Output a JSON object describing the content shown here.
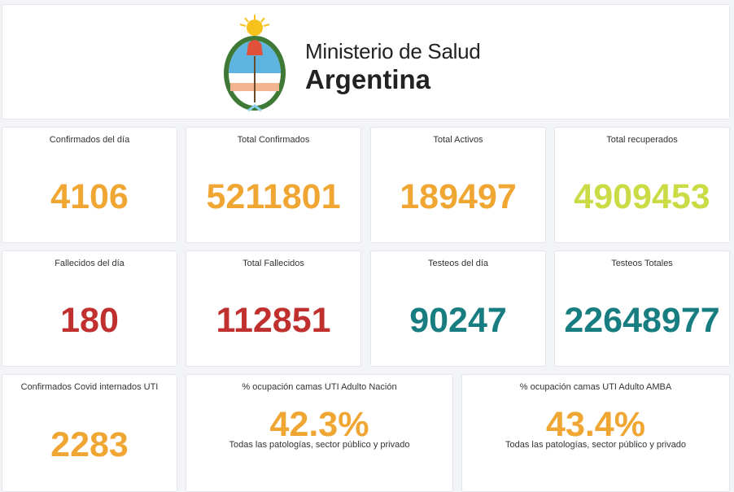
{
  "header": {
    "line1": "Ministerio de Salud",
    "line2": "Argentina"
  },
  "colors": {
    "orange": "#f0a632",
    "green": "#cadb45",
    "red": "#c0302e",
    "teal": "#177d80"
  },
  "cards": [
    {
      "title": "Confirmados del día",
      "value": "4106",
      "color": "#f0a632"
    },
    {
      "title": "Total Confirmados",
      "value": "5211801",
      "color": "#f0a632"
    },
    {
      "title": "Total Activos",
      "value": "189497",
      "color": "#f0a632"
    },
    {
      "title": "Total recuperados",
      "value": "4909453",
      "color": "#cadb45"
    },
    {
      "title": "Fallecidos del día",
      "value": "180",
      "color": "#c0302e"
    },
    {
      "title": "Total Fallecidos",
      "value": "112851",
      "color": "#c0302e"
    },
    {
      "title": "Testeos del día",
      "value": "90247",
      "color": "#177d80"
    },
    {
      "title": "Testeos Totales",
      "value": "22648977",
      "color": "#177d80"
    },
    {
      "title": "Confirmados Covid internados UTI",
      "value": "2283",
      "color": "#f0a632"
    },
    {
      "title": "% ocupación camas UTI Adulto Nación",
      "value": "42.3%",
      "subtitle": "Todas las patologías, sector público y privado",
      "color": "#f0a632"
    },
    {
      "title": "% ocupación camas UTI Adulto AMBA",
      "value": "43.4%",
      "subtitle": "Todas las patologías, sector público y privado",
      "color": "#f0a632"
    }
  ]
}
